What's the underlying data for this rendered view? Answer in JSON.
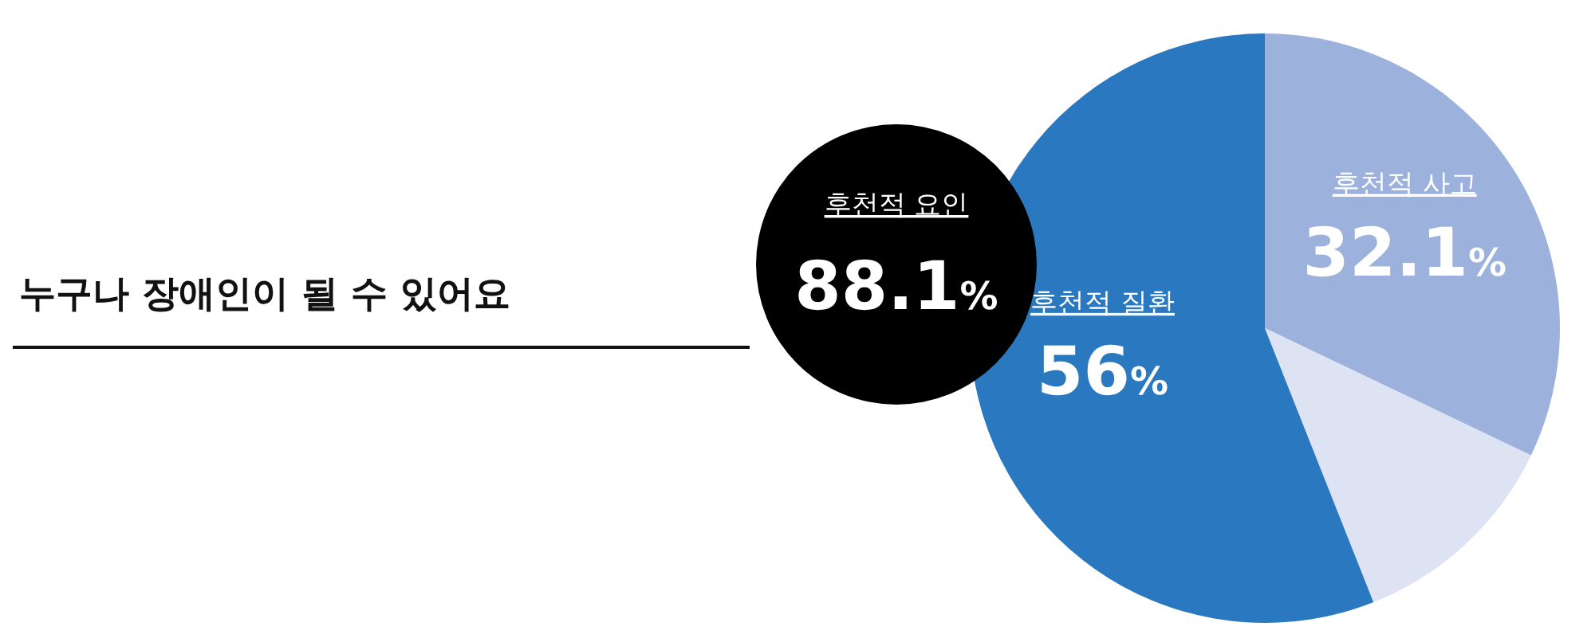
{
  "chart_data": {
    "type": "pie",
    "title": "누구나 장애인이 될 수 있어요",
    "categories": [
      "후천적 사고",
      null,
      "후천적 질환"
    ],
    "values": [
      32.1,
      11.9,
      56
    ],
    "value_labels": [
      "32.1%",
      null,
      "56%"
    ],
    "colors": [
      "#9cb2dc",
      "#dde3f2",
      "#2a78c0"
    ],
    "annotations": [
      "후천적 요인",
      "88.1%"
    ]
  }
}
